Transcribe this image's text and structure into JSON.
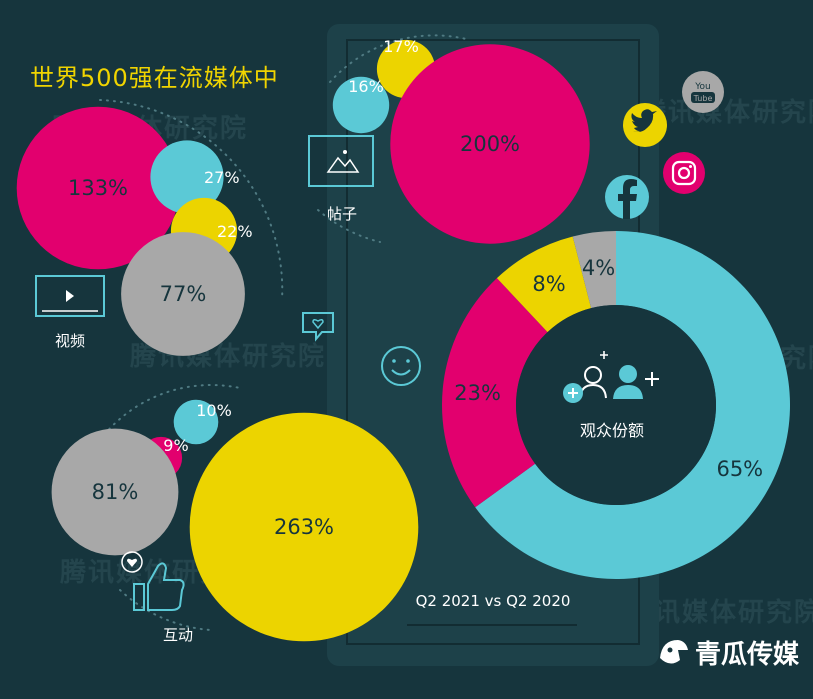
{
  "title": "世界500强在流媒体中",
  "footer_caption": "Q2 2021 vs Q2 2020",
  "brand": "青瓜传媒",
  "watermark": "腾讯媒体研究院",
  "colors": {
    "background": "#16353d",
    "panel": "#1d4149",
    "magenta": "#e2006e",
    "yellow": "#ecd400",
    "teal": "#5bc9d6",
    "gray": "#a8a8a8",
    "title": "#f0d400"
  },
  "chart_data": [
    {
      "type": "bubble",
      "label": "视频",
      "icon": "video-player-icon",
      "values": [
        {
          "value": 133,
          "text": "133%",
          "color": "magenta"
        },
        {
          "value": 27,
          "text": "27%",
          "color": "teal"
        },
        {
          "value": 22,
          "text": "22%",
          "color": "yellow"
        },
        {
          "value": 77,
          "text": "77%",
          "color": "gray"
        }
      ]
    },
    {
      "type": "bubble",
      "label": "帖子",
      "icon": "image-post-icon",
      "values": [
        {
          "value": 17,
          "text": "17%",
          "color": "yellow"
        },
        {
          "value": 16,
          "text": "16%",
          "color": "teal"
        },
        {
          "value": 200,
          "text": "200%",
          "color": "magenta"
        }
      ]
    },
    {
      "type": "bubble",
      "label": "互动",
      "icon": "thumbs-up-icon",
      "values": [
        {
          "value": 10,
          "text": "10%",
          "color": "teal"
        },
        {
          "value": 9,
          "text": "9%",
          "color": "magenta"
        },
        {
          "value": 81,
          "text": "81%",
          "color": "gray"
        },
        {
          "value": 263,
          "text": "263%",
          "color": "yellow"
        }
      ]
    },
    {
      "type": "pie",
      "variant": "donut",
      "center_label": "观众份额",
      "slices": [
        {
          "value": 65,
          "text": "65%",
          "color": "teal"
        },
        {
          "value": 23,
          "text": "23%",
          "color": "magenta"
        },
        {
          "value": 8,
          "text": "8%",
          "color": "yellow"
        },
        {
          "value": 4,
          "text": "4%",
          "color": "gray"
        }
      ]
    }
  ]
}
